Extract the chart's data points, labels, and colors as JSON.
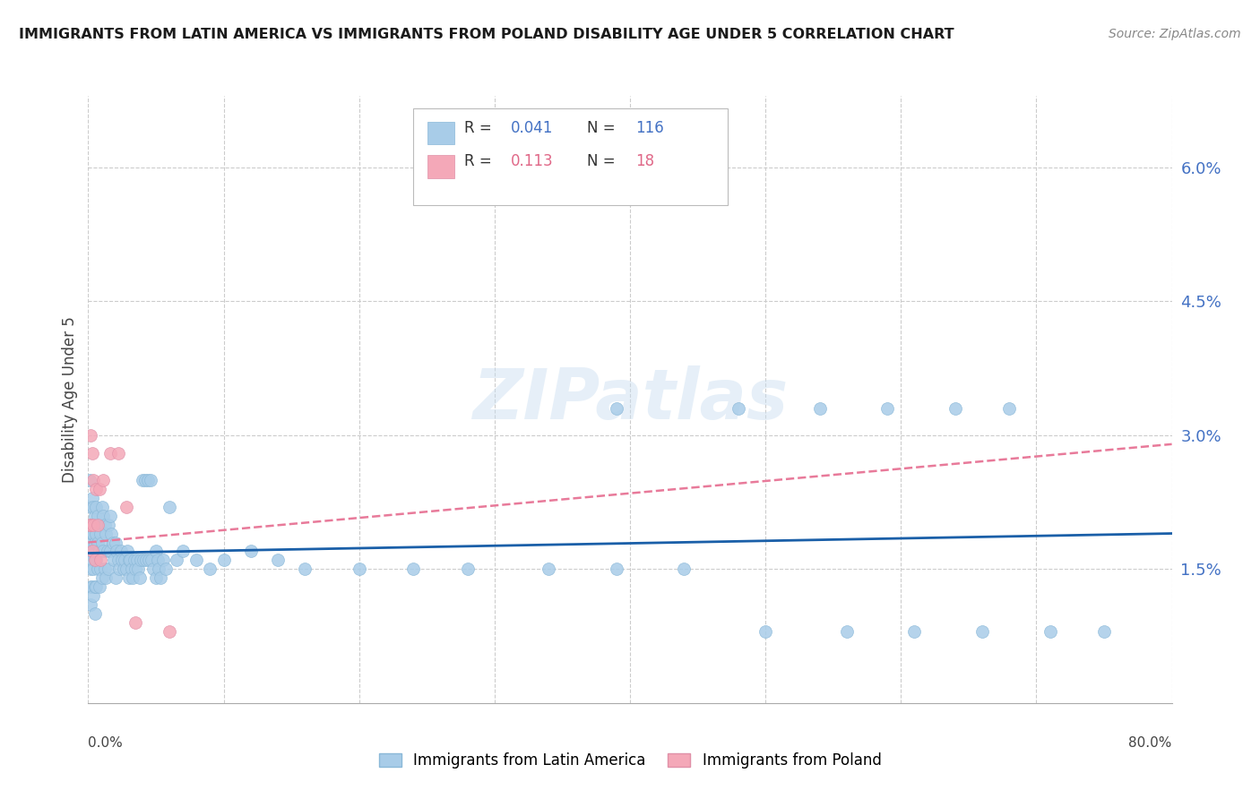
{
  "title": "IMMIGRANTS FROM LATIN AMERICA VS IMMIGRANTS FROM POLAND DISABILITY AGE UNDER 5 CORRELATION CHART",
  "source": "Source: ZipAtlas.com",
  "ylabel": "Disability Age Under 5",
  "legend_label1": "Immigrants from Latin America",
  "legend_label2": "Immigrants from Poland",
  "R1": "0.041",
  "N1": "116",
  "R2": "0.113",
  "N2": "18",
  "color1": "#a8cce8",
  "color2": "#f4a8b8",
  "trend1_color": "#1a5fa8",
  "trend2_color": "#e87a9a",
  "watermark": "ZIPatlas",
  "background": "#ffffff",
  "x_range": [
    0.0,
    0.8
  ],
  "y_range": [
    0.0,
    0.068
  ],
  "grid_color": "#cccccc",
  "tick_color": "#4472c4",
  "title_color": "#1a1a1a",
  "source_color": "#888888",
  "latin_x": [
    0.001,
    0.001,
    0.001,
    0.002,
    0.002,
    0.002,
    0.002,
    0.002,
    0.003,
    0.003,
    0.003,
    0.003,
    0.004,
    0.004,
    0.004,
    0.004,
    0.004,
    0.005,
    0.005,
    0.005,
    0.005,
    0.005,
    0.006,
    0.006,
    0.006,
    0.006,
    0.007,
    0.007,
    0.007,
    0.008,
    0.008,
    0.008,
    0.009,
    0.009,
    0.01,
    0.01,
    0.01,
    0.011,
    0.011,
    0.012,
    0.012,
    0.013,
    0.013,
    0.014,
    0.015,
    0.015,
    0.016,
    0.016,
    0.017,
    0.018,
    0.019,
    0.02,
    0.02,
    0.021,
    0.022,
    0.023,
    0.024,
    0.025,
    0.026,
    0.027,
    0.028,
    0.029,
    0.03,
    0.03,
    0.031,
    0.032,
    0.033,
    0.034,
    0.035,
    0.036,
    0.037,
    0.038,
    0.039,
    0.04,
    0.041,
    0.042,
    0.043,
    0.044,
    0.045,
    0.046,
    0.047,
    0.048,
    0.05,
    0.05,
    0.051,
    0.052,
    0.053,
    0.055,
    0.057,
    0.06,
    0.065,
    0.07,
    0.08,
    0.09,
    0.1,
    0.12,
    0.14,
    0.16,
    0.2,
    0.24,
    0.28,
    0.34,
    0.39,
    0.44,
    0.5,
    0.56,
    0.61,
    0.66,
    0.71,
    0.75,
    0.39,
    0.48,
    0.54,
    0.59,
    0.64,
    0.68
  ],
  "latin_y": [
    0.02,
    0.025,
    0.017,
    0.022,
    0.018,
    0.015,
    0.013,
    0.011,
    0.023,
    0.019,
    0.016,
    0.013,
    0.022,
    0.019,
    0.017,
    0.015,
    0.012,
    0.021,
    0.018,
    0.016,
    0.013,
    0.01,
    0.022,
    0.019,
    0.016,
    0.013,
    0.021,
    0.018,
    0.015,
    0.02,
    0.017,
    0.013,
    0.019,
    0.015,
    0.022,
    0.018,
    0.014,
    0.021,
    0.017,
    0.02,
    0.015,
    0.019,
    0.014,
    0.017,
    0.02,
    0.015,
    0.021,
    0.017,
    0.019,
    0.018,
    0.016,
    0.018,
    0.014,
    0.017,
    0.016,
    0.015,
    0.017,
    0.016,
    0.015,
    0.016,
    0.015,
    0.017,
    0.016,
    0.014,
    0.016,
    0.015,
    0.014,
    0.016,
    0.015,
    0.016,
    0.015,
    0.014,
    0.016,
    0.025,
    0.016,
    0.025,
    0.016,
    0.025,
    0.016,
    0.025,
    0.016,
    0.015,
    0.017,
    0.014,
    0.016,
    0.015,
    0.014,
    0.016,
    0.015,
    0.022,
    0.016,
    0.017,
    0.016,
    0.015,
    0.016,
    0.017,
    0.016,
    0.015,
    0.015,
    0.015,
    0.015,
    0.015,
    0.015,
    0.015,
    0.008,
    0.008,
    0.008,
    0.008,
    0.008,
    0.008,
    0.033,
    0.033,
    0.033,
    0.033,
    0.033,
    0.033
  ],
  "poland_x": [
    0.001,
    0.002,
    0.002,
    0.003,
    0.003,
    0.004,
    0.004,
    0.005,
    0.006,
    0.007,
    0.008,
    0.009,
    0.011,
    0.016,
    0.022,
    0.028,
    0.035,
    0.06
  ],
  "poland_y": [
    0.02,
    0.03,
    0.02,
    0.028,
    0.017,
    0.025,
    0.02,
    0.016,
    0.024,
    0.02,
    0.024,
    0.016,
    0.025,
    0.028,
    0.028,
    0.022,
    0.009,
    0.008
  ],
  "trend1_x0": 0.0,
  "trend1_x1": 0.8,
  "trend1_y0": 0.0168,
  "trend1_y1": 0.019,
  "trend2_x0": 0.0,
  "trend2_x1": 0.8,
  "trend2_y0": 0.018,
  "trend2_y1": 0.029
}
